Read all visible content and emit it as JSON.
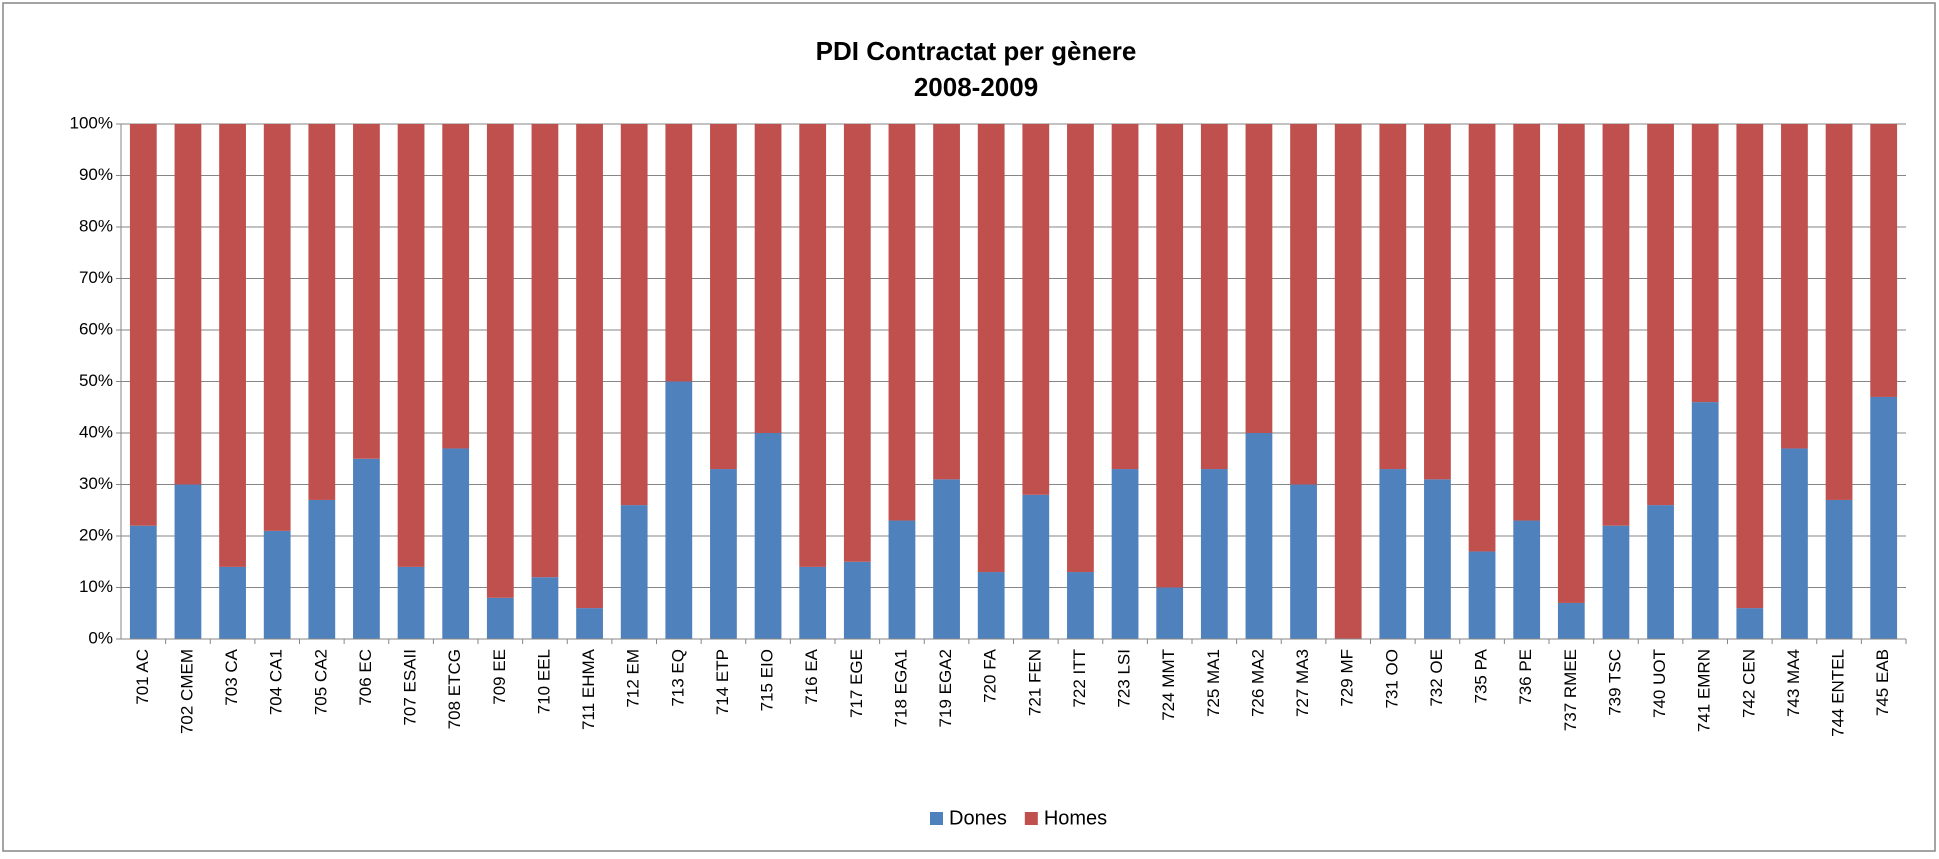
{
  "chart_data": {
    "type": "stacked_bar_100",
    "title": "PDI Contractat per gènere",
    "subtitle": "2008-2009",
    "categories": [
      "701 AC",
      "702 CMEM",
      "703 CA",
      "704 CA1",
      "705 CA2",
      "706 EC",
      "707 ESAII",
      "708 ETCG",
      "709 EE",
      "710 EEL",
      "711 EHMA",
      "712 EM",
      "713 EQ",
      "714 ETP",
      "715 EIO",
      "716 EA",
      "717 EGE",
      "718 EGA1",
      "719 EGA2",
      "720 FA",
      "721 FEN",
      "722 ITT",
      "723 LSI",
      "724 MMT",
      "725 MA1",
      "726 MA2",
      "727 MA3",
      "729 MF",
      "731 OO",
      "732 OE",
      "735 PA",
      "736 PE",
      "737 RMEE",
      "739 TSC",
      "740 UOT",
      "741 EMRN",
      "742 CEN",
      "743 MA4",
      "744 ENTEL",
      "745 EAB"
    ],
    "series": [
      {
        "name": "Dones",
        "color": "#4f81bd",
        "values": [
          22,
          30,
          14,
          21,
          27,
          35,
          14,
          37,
          8,
          12,
          6,
          26,
          50,
          33,
          40,
          14,
          15,
          23,
          31,
          13,
          28,
          13,
          33,
          10,
          33,
          40,
          30,
          0,
          33,
          31,
          17,
          23,
          7,
          22,
          26,
          46,
          6,
          37,
          27,
          47
        ]
      },
      {
        "name": "Homes",
        "color": "#c0504d",
        "values": [
          78,
          70,
          86,
          79,
          73,
          65,
          86,
          63,
          92,
          88,
          94,
          74,
          50,
          67,
          60,
          86,
          85,
          77,
          69,
          87,
          72,
          87,
          67,
          90,
          67,
          60,
          70,
          100,
          67,
          69,
          83,
          77,
          93,
          78,
          74,
          54,
          94,
          63,
          73,
          53
        ]
      }
    ],
    "ylim": [
      0,
      100
    ],
    "yticks": [
      {
        "value": 0,
        "label": "0%"
      },
      {
        "value": 10,
        "label": "10%"
      },
      {
        "value": 20,
        "label": "20%"
      },
      {
        "value": 30,
        "label": "30%"
      },
      {
        "value": 40,
        "label": "40%"
      },
      {
        "value": 50,
        "label": "50%"
      },
      {
        "value": 60,
        "label": "60%"
      },
      {
        "value": 70,
        "label": "70%"
      },
      {
        "value": 80,
        "label": "80%"
      },
      {
        "value": 90,
        "label": "90%"
      },
      {
        "value": 100,
        "label": "100%"
      }
    ],
    "grid": true,
    "legend": "bottom"
  }
}
